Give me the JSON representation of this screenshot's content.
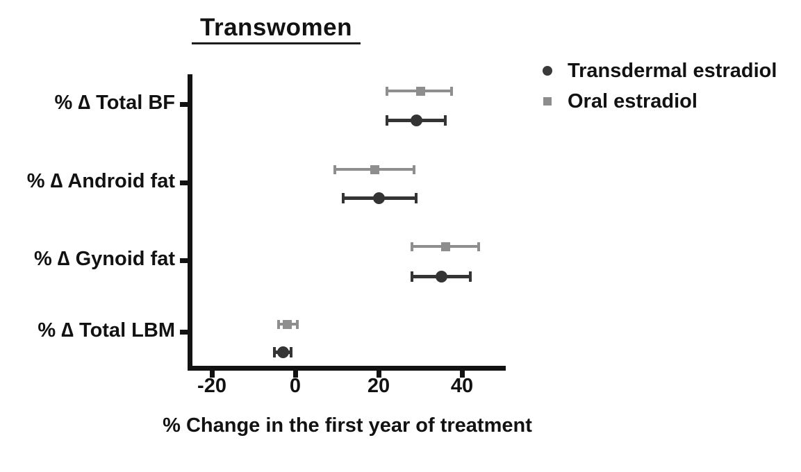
{
  "title": "Transwomen",
  "chart_data": {
    "type": "scatter",
    "subtype": "horizontal-dot-plot-with-error-bars",
    "title": "Transwomen",
    "xlabel": "% Change in the first year of treatment",
    "xlim": [
      -26,
      50.5
    ],
    "x_tick_values": [
      -20,
      0,
      20,
      40
    ],
    "x_tick_labels": [
      "-20",
      "0",
      "20",
      "40"
    ],
    "grid": false,
    "legend_position": "top-right",
    "categories": [
      "% ∆ Total BF",
      "% ∆ Android fat",
      "% ∆ Gynoid fat",
      "% ∆ Total LBM"
    ],
    "series": [
      {
        "name": "Transdermal estradiol",
        "marker": "circle",
        "color": "#343434",
        "values": [
          29,
          20,
          35,
          -3
        ],
        "ci_low": [
          22,
          11.5,
          28,
          -5
        ],
        "ci_high": [
          36,
          29,
          42,
          -1
        ]
      },
      {
        "name": "Oral estradiol",
        "marker": "square",
        "color": "#8e8e8e",
        "values": [
          30,
          19,
          36,
          -2
        ],
        "ci_low": [
          22,
          9.5,
          28,
          -4
        ],
        "ci_high": [
          37.5,
          28.5,
          44,
          0.5
        ]
      }
    ]
  }
}
